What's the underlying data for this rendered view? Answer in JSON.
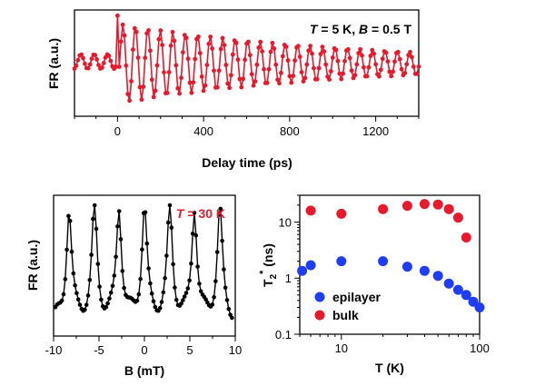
{
  "chart_data": [
    {
      "id": "top",
      "type": "line",
      "annotation": "T = 5 K, B = 0.5 T",
      "annotation_parts": [
        "T",
        " = 5 K, ",
        "B",
        " = 0.5 T"
      ],
      "xlabel": "Delay time (ps)",
      "ylabel": "FR (a.u.)",
      "xlim": [
        -200,
        1400
      ],
      "xticks": [
        "0",
        "400",
        "800",
        "1200"
      ],
      "xtick_values": [
        0,
        400,
        800,
        1200
      ],
      "color": "#e8192c",
      "signal": {
        "period_ps": 58,
        "amplitude_start": 1.0,
        "decay_ps": 1100,
        "pre_zero_amplitude": 0.18,
        "pre_zero_period_ps": 62
      }
    },
    {
      "id": "bottom-left",
      "type": "line",
      "annotation": "T = 30 K",
      "annotation_parts": [
        "T",
        " = 30 K"
      ],
      "annotation_color": "#e8192c",
      "xlabel": "B (mT)",
      "ylabel": "FR (a.u.)",
      "xlim": [
        -10,
        10
      ],
      "xticks": [
        "-10",
        "-5",
        "0",
        "5",
        "10"
      ],
      "xtick_values": [
        -10,
        -5,
        0,
        5,
        10
      ],
      "color": "#000000",
      "peaks_mT": [
        -8.3,
        -5.5,
        -2.8,
        0,
        2.8,
        5.5,
        8.3
      ],
      "peak_width_mT": 0.35
    },
    {
      "id": "bottom-right",
      "type": "scatter",
      "xscale": "log",
      "yscale": "log",
      "xlabel": "T (K)",
      "ylabel_main": "T",
      "ylabel_sub": "2",
      "ylabel_sup": "*",
      "ylabel_unit": " (ns)",
      "xlim": [
        5,
        100
      ],
      "ylim": [
        0.1,
        30
      ],
      "xticks": [
        "10",
        "100"
      ],
      "xtick_values": [
        10,
        100
      ],
      "yticks": [
        "0.1",
        "1",
        "10"
      ],
      "ytick_values": [
        0.1,
        1,
        10
      ],
      "legend_position": "bottom-left",
      "series": [
        {
          "name": "epilayer",
          "color": "#1f3df5",
          "x": [
            5.2,
            6,
            10,
            20,
            30,
            40,
            50,
            60,
            70,
            80,
            90,
            100
          ],
          "y": [
            1.35,
            1.7,
            2.0,
            2.0,
            1.6,
            1.35,
            1.1,
            0.8,
            0.62,
            0.5,
            0.38,
            0.3
          ]
        },
        {
          "name": "bulk",
          "color": "#e8192c",
          "x": [
            6,
            10,
            20,
            30,
            40,
            50,
            60,
            70,
            80
          ],
          "y": [
            16,
            14,
            17,
            19.5,
            21,
            20.5,
            17,
            12,
            5.3
          ]
        }
      ]
    }
  ]
}
